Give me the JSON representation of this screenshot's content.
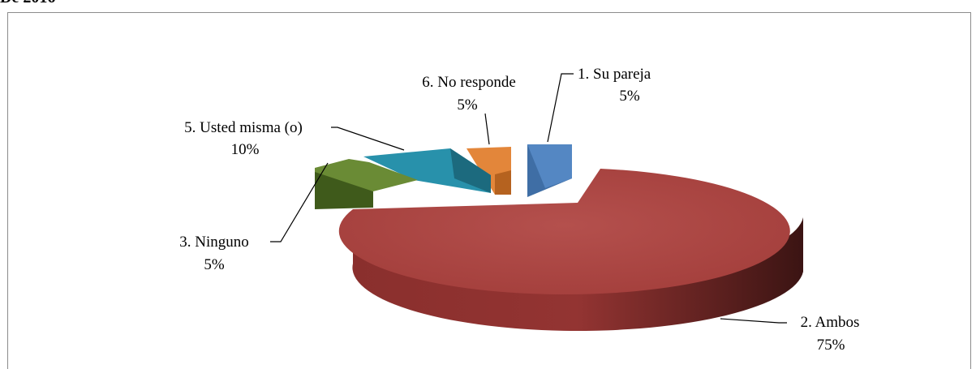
{
  "header": {
    "text": "De 2016"
  },
  "chart_data": {
    "type": "pie",
    "style": "3d-exploded",
    "categories": [
      "1. Su pareja",
      "2. Ambos",
      "3. Ninguno",
      "5. Usted misma (o)",
      "6. No responde"
    ],
    "values": [
      5,
      75,
      5,
      10,
      5
    ],
    "value_labels": [
      "5%",
      "75%",
      "5%",
      "10%",
      "5%"
    ],
    "colors": [
      "#4a7ebb",
      "#a33d3b",
      "#5c7a2e",
      "#2e8fa6",
      "#d87a2c"
    ],
    "legend": "none"
  }
}
